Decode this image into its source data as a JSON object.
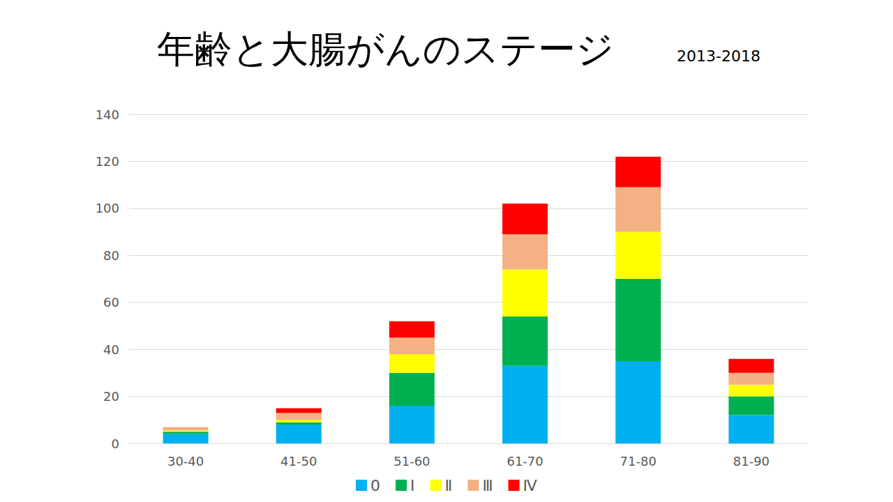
{
  "chart_data": {
    "type": "bar",
    "title": "年齢と大腸がんのステージ",
    "subtitle": "2013-2018",
    "categories": [
      "30-40",
      "41-50",
      "51-60",
      "61-70",
      "71-80",
      "81-90"
    ],
    "series": [
      {
        "name": "0",
        "color": "#00B0F0",
        "values": [
          4,
          8,
          16,
          33,
          35,
          12
        ]
      },
      {
        "name": "Ⅰ",
        "color": "#00B050",
        "values": [
          1,
          1,
          14,
          21,
          35,
          8
        ]
      },
      {
        "name": "Ⅱ",
        "color": "#FFFF00",
        "values": [
          0.5,
          1,
          8,
          20,
          20,
          5
        ]
      },
      {
        "name": "Ⅲ",
        "color": "#F4B183",
        "values": [
          1.5,
          3,
          7,
          15,
          19,
          5
        ]
      },
      {
        "name": "Ⅳ",
        "color": "#FF0000",
        "values": [
          0,
          2,
          7,
          13,
          13,
          6
        ]
      }
    ],
    "ylim": [
      0,
      140
    ],
    "yticks": [
      0,
      20,
      40,
      60,
      80,
      100,
      120,
      140
    ],
    "grid": true,
    "stacked": true,
    "legend": "bottom"
  }
}
